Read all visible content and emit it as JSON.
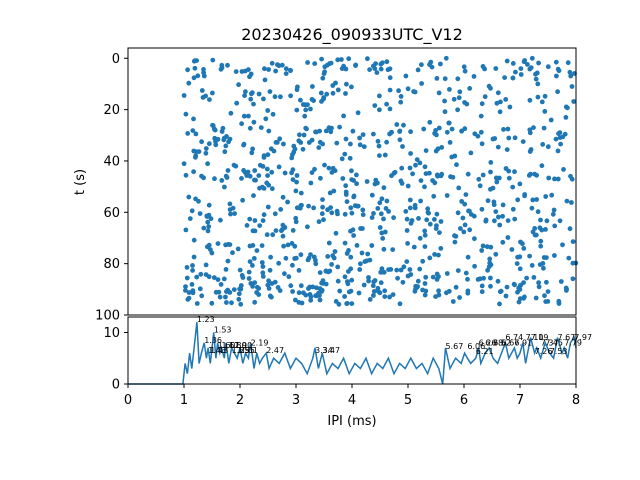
{
  "colors": {
    "series": "#1f77b4",
    "axes": "#000000",
    "background": "#ffffff"
  },
  "chart_data": [
    {
      "type": "scatter",
      "title": "20230426_090933UTC_V12",
      "ylabel": "t (s)",
      "xlim": [
        0,
        8
      ],
      "ylim": [
        100,
        -4
      ],
      "y_inverted": true,
      "yticks": [
        "0",
        "20",
        "40",
        "60",
        "80",
        "100"
      ],
      "grid": false,
      "marker": "dot",
      "x_range_of_points": [
        1.0,
        8.0
      ],
      "y_range_of_points": [
        0,
        96
      ],
      "density_note": "dense random spike raster, ~1000 points"
    },
    {
      "type": "line",
      "xlabel": "IPI (ms)",
      "xlim": [
        0,
        8
      ],
      "ylim": [
        0,
        13
      ],
      "xticks": [
        "0",
        "1",
        "2",
        "3",
        "4",
        "5",
        "6",
        "7",
        "8"
      ],
      "yticks": [
        "0",
        "10"
      ],
      "grid": false,
      "series": [
        {
          "x": [
            0,
            0.5,
            0.98,
            1.02,
            1.06,
            1.1,
            1.14,
            1.18,
            1.23,
            1.27,
            1.31,
            1.36,
            1.4,
            1.43,
            1.47,
            1.53,
            1.57,
            1.6,
            1.64,
            1.67,
            1.72,
            1.75,
            1.8,
            1.85,
            1.9,
            1.95,
            2.0,
            2.05,
            2.1,
            2.15,
            2.19,
            2.25,
            2.3,
            2.35,
            2.4,
            2.47,
            2.52,
            2.6,
            2.7,
            2.8,
            2.9,
            3.0,
            3.1,
            3.2,
            3.3,
            3.34,
            3.4,
            3.47,
            3.55,
            3.65,
            3.75,
            3.85,
            3.95,
            4.05,
            4.15,
            4.25,
            4.35,
            4.45,
            4.55,
            4.65,
            4.75,
            4.85,
            4.95,
            5.05,
            5.15,
            5.25,
            5.35,
            5.45,
            5.55,
            5.62,
            5.67,
            5.75,
            5.85,
            5.95,
            6.01,
            6.06,
            6.12,
            6.21,
            6.26,
            6.3,
            6.38,
            6.45,
            6.52,
            6.6,
            6.67,
            6.74,
            6.8,
            6.9,
            6.95,
            7.0,
            7.05,
            7.1,
            7.19,
            7.26,
            7.3,
            7.37,
            7.45,
            7.53,
            7.6,
            7.67,
            7.75,
            7.79,
            7.85,
            7.9,
            7.97,
            8.0
          ],
          "y": [
            0,
            0,
            0,
            4,
            2,
            6,
            3,
            7,
            12,
            4,
            6,
            8,
            5,
            7,
            4,
            10,
            5,
            8,
            6,
            7,
            5,
            8,
            4,
            7,
            6,
            5,
            7,
            4,
            6,
            5,
            8,
            3,
            6,
            4,
            5,
            6,
            3,
            5,
            4,
            6,
            3,
            5,
            4,
            2,
            5,
            7,
            3,
            6,
            2,
            4,
            3,
            5,
            2,
            4,
            3,
            5,
            2,
            4,
            3,
            5,
            2,
            4,
            3,
            5,
            3,
            4,
            2,
            5,
            3,
            0,
            7,
            3,
            5,
            4,
            6,
            5,
            4,
            5,
            7,
            4,
            6,
            7,
            5,
            4,
            6,
            8,
            5,
            7,
            5,
            6,
            8,
            4,
            9,
            6,
            7,
            5,
            8,
            6,
            5,
            9,
            6,
            7,
            5,
            8,
            9,
            7
          ]
        }
      ],
      "peak_labels": [
        {
          "x": 1.23,
          "y": 12.0,
          "text": "1.23"
        },
        {
          "x": 1.53,
          "y": 10.0,
          "text": "1.53"
        },
        {
          "x": 1.36,
          "y": 8.0,
          "text": "1.36"
        },
        {
          "x": 1.43,
          "y": 6.0,
          "text": "1.43"
        },
        {
          "x": 1.47,
          "y": 6.0,
          "text": "1.43"
        },
        {
          "x": 1.67,
          "y": 7.0,
          "text": "1.67"
        },
        {
          "x": 1.6,
          "y": 7.0,
          "text": "1.60"
        },
        {
          "x": 1.8,
          "y": 7.0,
          "text": "1.80"
        },
        {
          "x": 1.85,
          "y": 6.0,
          "text": "1.85"
        },
        {
          "x": 1.9,
          "y": 7.0,
          "text": "1.90"
        },
        {
          "x": 1.95,
          "y": 6.0,
          "text": "1.95"
        },
        {
          "x": 2.0,
          "y": 6.0,
          "text": "2.01"
        },
        {
          "x": 2.19,
          "y": 7.5,
          "text": "2.19"
        },
        {
          "x": 2.47,
          "y": 6.0,
          "text": "2.47"
        },
        {
          "x": 3.34,
          "y": 6.0,
          "text": "3.34"
        },
        {
          "x": 3.47,
          "y": 6.0,
          "text": "3.47"
        },
        {
          "x": 5.67,
          "y": 6.8,
          "text": "5.67"
        },
        {
          "x": 6.06,
          "y": 6.8,
          "text": "6.06"
        },
        {
          "x": 6.21,
          "y": 5.8,
          "text": "6.21"
        },
        {
          "x": 6.26,
          "y": 7.5,
          "text": "6.26"
        },
        {
          "x": 6.38,
          "y": 7.5,
          "text": "6.38"
        },
        {
          "x": 6.52,
          "y": 7.5,
          "text": "6.52"
        },
        {
          "x": 6.67,
          "y": 7.5,
          "text": "6.67"
        },
        {
          "x": 6.74,
          "y": 8.5,
          "text": "6.74"
        },
        {
          "x": 6.9,
          "y": 7.5,
          "text": "6.91"
        },
        {
          "x": 7.1,
          "y": 8.5,
          "text": "7.10"
        },
        {
          "x": 7.19,
          "y": 8.5,
          "text": "7.19"
        },
        {
          "x": 7.26,
          "y": 5.8,
          "text": "7.26"
        },
        {
          "x": 7.37,
          "y": 7.5,
          "text": "7.37"
        },
        {
          "x": 7.45,
          "y": 7.5,
          "text": "7.45"
        },
        {
          "x": 7.53,
          "y": 5.8,
          "text": "7.53"
        },
        {
          "x": 7.67,
          "y": 8.5,
          "text": "7.67"
        },
        {
          "x": 7.79,
          "y": 7.5,
          "text": "7.79"
        },
        {
          "x": 7.97,
          "y": 8.5,
          "text": "7.97"
        }
      ]
    }
  ]
}
